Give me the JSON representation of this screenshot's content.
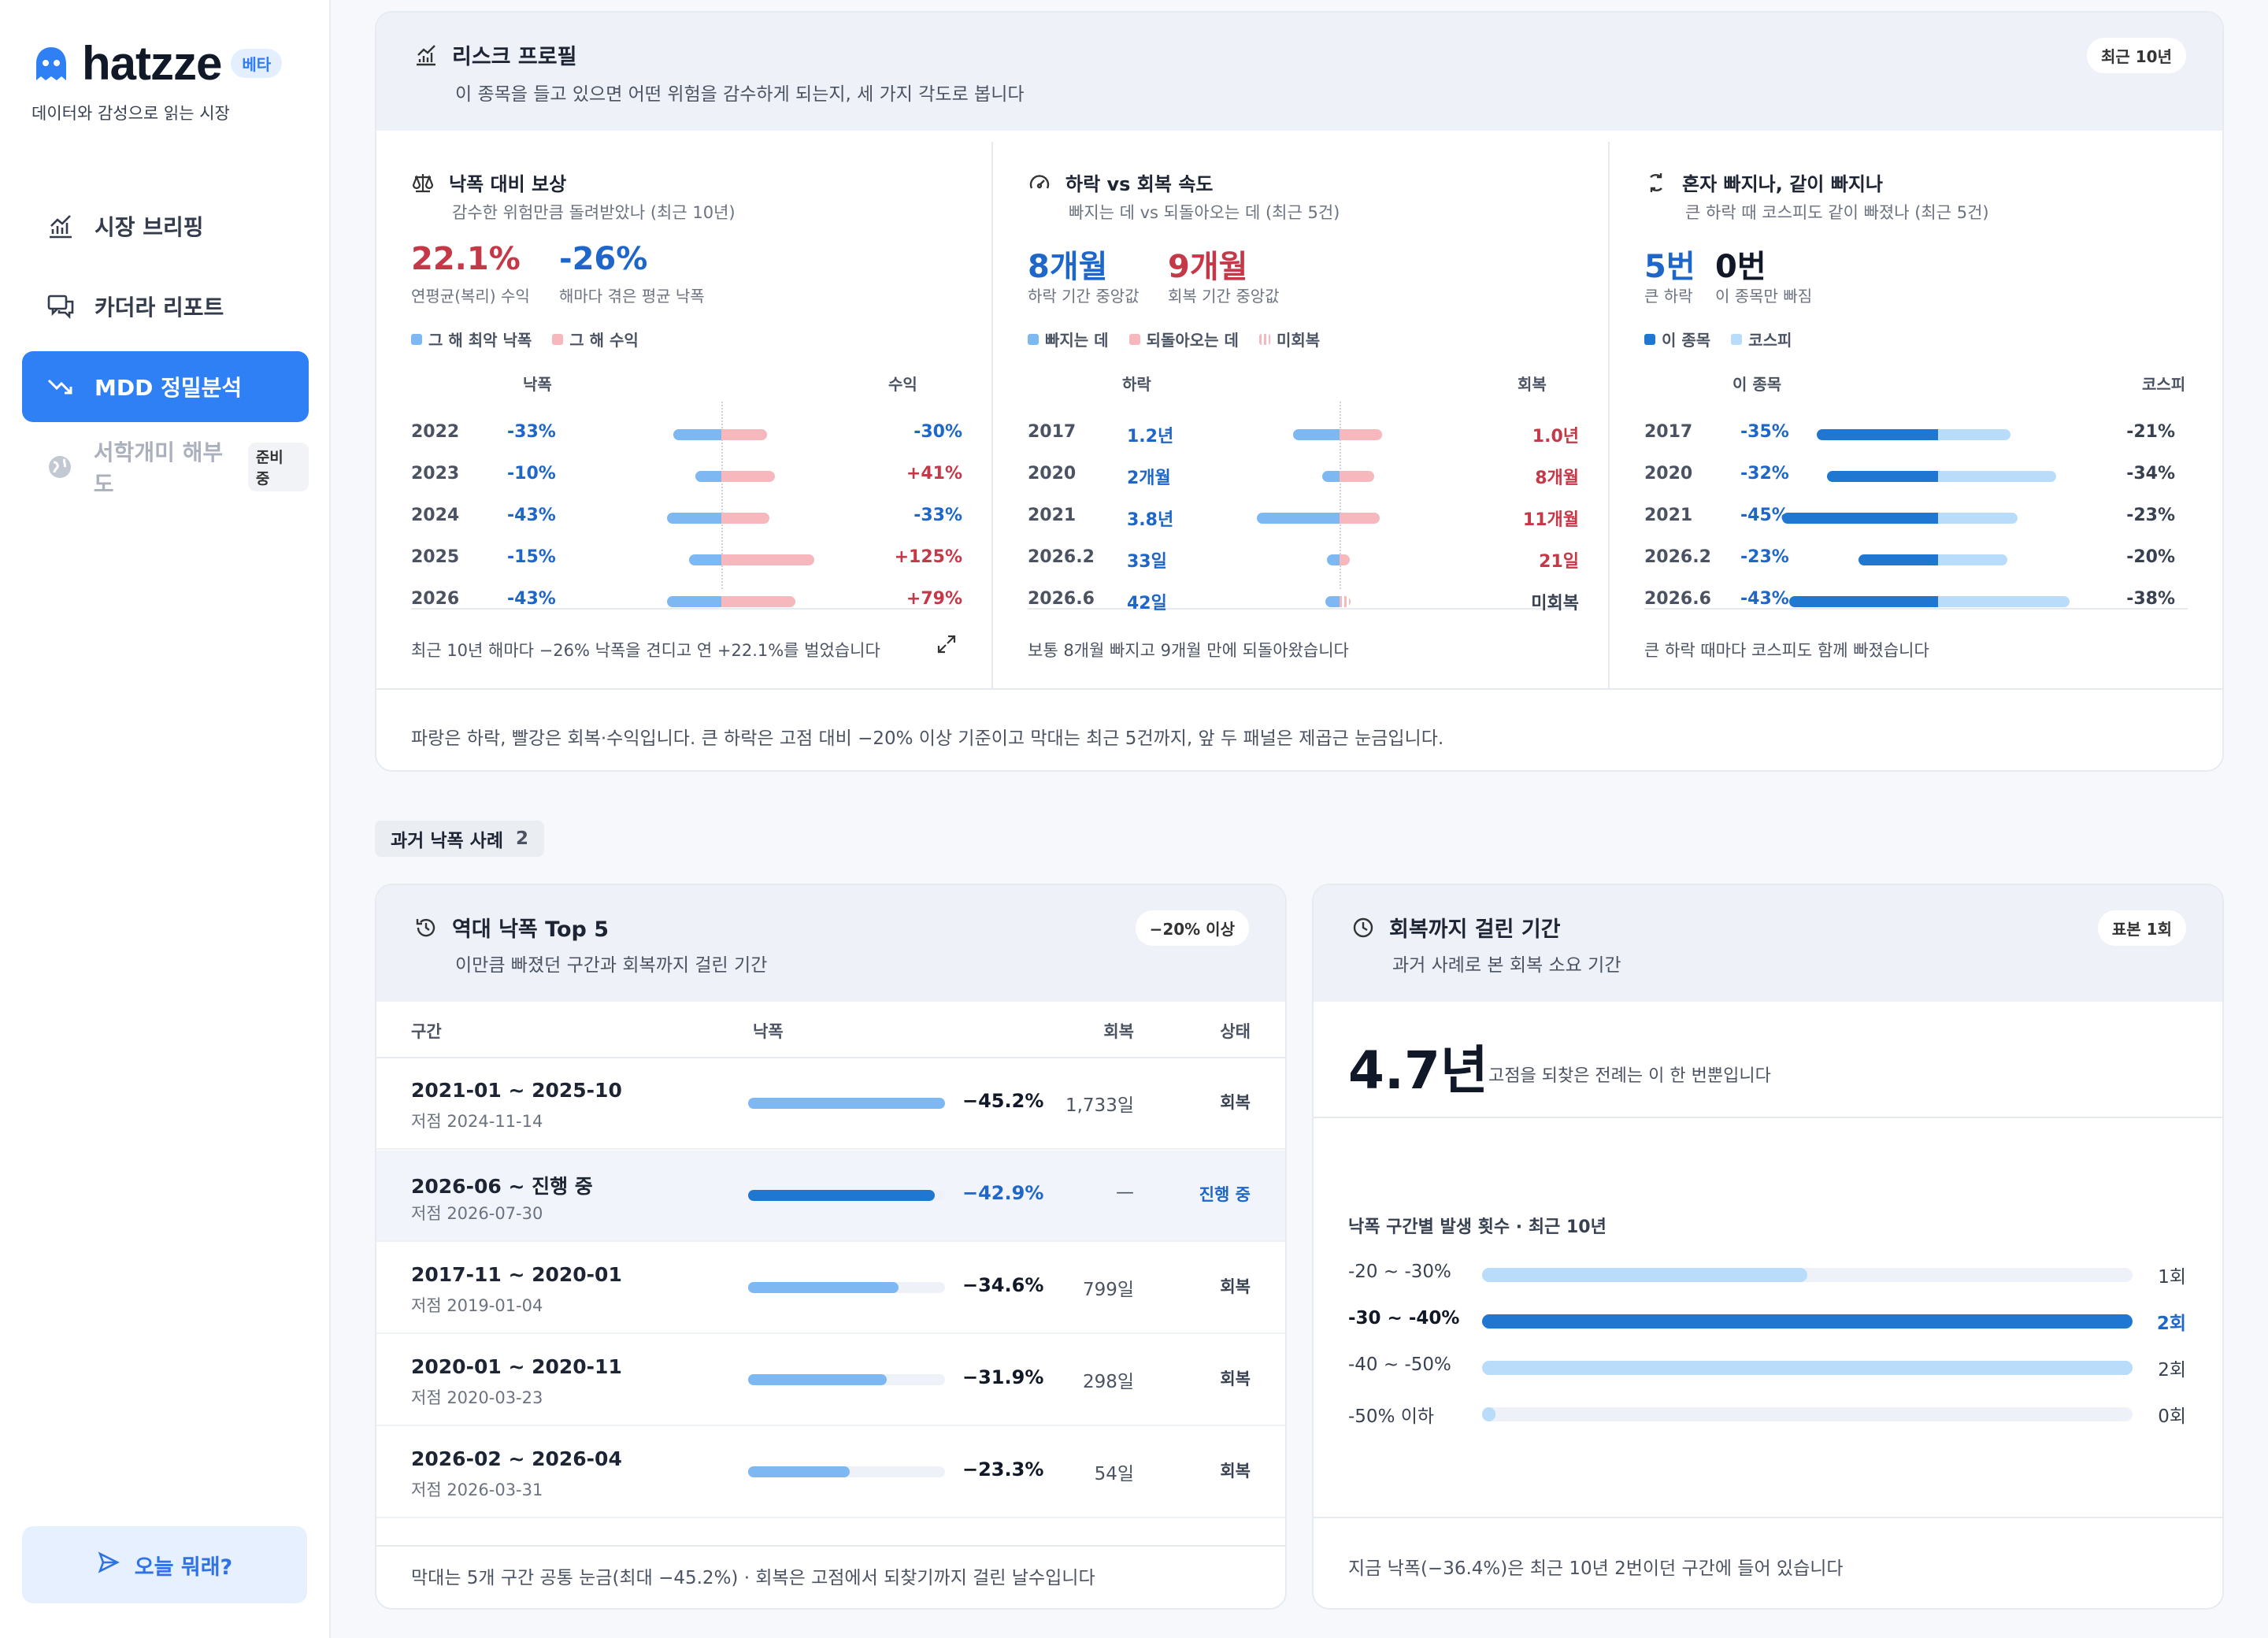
{
  "brand": {
    "name": "hatzze",
    "beta": "베타",
    "tagline": "데이터와 감성으로 읽는 시장"
  },
  "nav": [
    {
      "label": "시장 브리핑",
      "icon": "chart-line-icon"
    },
    {
      "label": "카더라 리포트",
      "icon": "chat-bubbles-icon"
    },
    {
      "label": "MDD 정밀분석",
      "icon": "trend-down-icon",
      "active": true
    },
    {
      "label": "서학개미 해부도",
      "icon": "globe-icon",
      "disabled": true,
      "badge": "준비 중"
    }
  ],
  "today_button": "오늘 뭐래?",
  "risk": {
    "title": "리스크 프로필",
    "subtitle": "이 종목을 들고 있으면 어떤 위험을 감수하게 되는지, 세 가지 각도로 봅니다",
    "pill": "최근 10년",
    "footer": "파랑은 하락, 빨강은 회복·수익입니다. 큰 하락은 고점 대비 −20% 이상 기준이고 막대는 최근 5건까지, 앞 두 패널은 제곱근 눈금입니다.",
    "panel1": {
      "title": "낙폭 대비 보상",
      "subtitle": "감수한 위험만큼 돌려받았나 (최근 10년)",
      "big1": "22.1%",
      "big1_label": "연평균(복리) 수익",
      "big2": "-26%",
      "big2_label": "해마다 겪은 평균 낙폭",
      "legend1": "그 해 최악 낙폭",
      "legend2": "그 해 수익",
      "col_a": "낙폭",
      "col_b": "수익",
      "rows": [
        {
          "year": "2022",
          "dd": "-33%",
          "ret": "-30%",
          "dd_v": 33,
          "ret_v": -30
        },
        {
          "year": "2023",
          "dd": "-10%",
          "ret": "+41%",
          "dd_v": 10,
          "ret_v": 41
        },
        {
          "year": "2024",
          "dd": "-43%",
          "ret": "-33%",
          "dd_v": 43,
          "ret_v": -33
        },
        {
          "year": "2025",
          "dd": "-15%",
          "ret": "+125%",
          "dd_v": 15,
          "ret_v": 125
        },
        {
          "year": "2026",
          "dd": "-43%",
          "ret": "+79%",
          "dd_v": 43,
          "ret_v": 79
        }
      ],
      "note": "최근 10년 해마다 −26% 낙폭을 견디고 연 +22.1%를 벌었습니다"
    },
    "panel2": {
      "title": "하락 vs 회복 속도",
      "subtitle": "빠지는 데 vs 되돌아오는 데 (최근 5건)",
      "big1": "8개월",
      "big1_label": "하락 기간 중앙값",
      "big2": "9개월",
      "big2_label": "회복 기간 중앙값",
      "legend1": "빠지는 데",
      "legend2": "되돌아오는 데",
      "legend3": "미회복",
      "col_a": "하락",
      "col_b": "회복",
      "rows": [
        {
          "year": "2017",
          "down": "1.2년",
          "rec": "1.0년",
          "down_m": 14.4,
          "rec_m": 12
        },
        {
          "year": "2020",
          "down": "2개월",
          "rec": "8개월",
          "down_m": 2,
          "rec_m": 8
        },
        {
          "year": "2021",
          "down": "3.8년",
          "rec": "11개월",
          "down_m": 45.6,
          "rec_m": 11
        },
        {
          "year": "2026.2",
          "down": "33일",
          "rec": "21일",
          "down_m": 1.1,
          "rec_m": 0.7
        },
        {
          "year": "2026.6",
          "down": "42일",
          "rec": "미회복",
          "down_m": 1.4,
          "rec_m": 0.1,
          "unrecovered": true
        }
      ],
      "note": "보통 8개월 빠지고 9개월 만에 되돌아왔습니다"
    },
    "panel3": {
      "title": "혼자 빠지나, 같이 빠지나",
      "subtitle": "큰 하락 때 코스피도 같이 빠졌나 (최근 5건)",
      "big1": "5번",
      "big1_label": "큰 하락",
      "big2": "0번",
      "big2_label": "이 종목만 빠짐",
      "legend1": "이 종목",
      "legend2": "코스피",
      "col_a": "이 종목",
      "col_b": "코스피",
      "rows": [
        {
          "year": "2017",
          "stock": "-35%",
          "kospi": "-21%",
          "s_v": 35,
          "k_v": 21
        },
        {
          "year": "2020",
          "stock": "-32%",
          "kospi": "-34%",
          "s_v": 32,
          "k_v": 34
        },
        {
          "year": "2021",
          "stock": "-45%",
          "kospi": "-23%",
          "s_v": 45,
          "k_v": 23
        },
        {
          "year": "2026.2",
          "stock": "-23%",
          "kospi": "-20%",
          "s_v": 23,
          "k_v": 20
        },
        {
          "year": "2026.6",
          "stock": "-43%",
          "kospi": "-38%",
          "s_v": 43,
          "k_v": 38
        }
      ],
      "note": "큰 하락 때마다 코스피도 함께 빠졌습니다"
    }
  },
  "section": {
    "label": "과거 낙폭 사례",
    "count": "2"
  },
  "top5": {
    "title": "역대 낙폭 Top 5",
    "subtitle": "이만큼 빠졌던 구간과 회복까지 걸린 기간",
    "pill": "−20% 이상",
    "headers": {
      "range": "구간",
      "dd": "낙폭",
      "rec": "회복",
      "status": "상태"
    },
    "rows": [
      {
        "range": "2021-01 ~ 2025-10",
        "low": "저점 2024-11-14",
        "pct": "−45.2%",
        "value": 45.2,
        "days": "1,733일",
        "status": "회복"
      },
      {
        "range": "2026-06 ~ 진행 중",
        "low": "저점 2026-07-30",
        "pct": "−42.9%",
        "value": 42.9,
        "days": "—",
        "status": "진행 중",
        "ongoing": true
      },
      {
        "range": "2017-11 ~ 2020-01",
        "low": "저점 2019-01-04",
        "pct": "−34.6%",
        "value": 34.6,
        "days": "799일",
        "status": "회복"
      },
      {
        "range": "2020-01 ~ 2020-11",
        "low": "저점 2020-03-23",
        "pct": "−31.9%",
        "value": 31.9,
        "days": "298일",
        "status": "회복"
      },
      {
        "range": "2026-02 ~ 2026-04",
        "low": "저점 2026-03-31",
        "pct": "−23.3%",
        "value": 23.3,
        "days": "54일",
        "status": "회복"
      }
    ],
    "footer": "막대는 5개 구간 공통 눈금(최대 −45.2%) · 회복은 고점에서 되찾기까지 걸린 날수입니다"
  },
  "recovery": {
    "title": "회복까지 걸린 기간",
    "subtitle": "과거 사례로 본 회복 소요 기간",
    "pill": "표본 1회",
    "big": "4.7년",
    "big_note": "고점을 되찾은 전례는 이 한 번뿐입니다",
    "hist_title": "낙폭 구간별 발생 횟수 · 최근 10년",
    "hist": [
      {
        "label": "-20 ~ -30%",
        "count": "1회",
        "value": 1
      },
      {
        "label": "-30 ~ -40%",
        "count": "2회",
        "value": 2,
        "current": true
      },
      {
        "label": "-40 ~ -50%",
        "count": "2회",
        "value": 2
      },
      {
        "label": "-50% 이하",
        "count": "0회",
        "value": 0
      }
    ],
    "footer": "지금 낙폭(−36.4%)은 최근 10년 2번이던 구간에 들어 있습니다"
  },
  "colors": {
    "accent": "#2f80f5",
    "down": "#1e66c9",
    "up": "#c53848",
    "down_light": "#7db8f2",
    "up_light": "#f6b7bd",
    "kospi": "#b9dcfa",
    "stock": "#1f77d2"
  }
}
